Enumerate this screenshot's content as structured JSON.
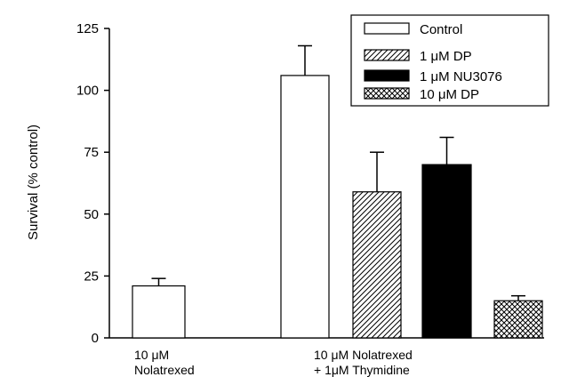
{
  "chart_data": {
    "type": "bar",
    "title": "",
    "xlabel": "",
    "ylabel": "Survival (% control)",
    "ylim": [
      0,
      125
    ],
    "yticks": [
      "0",
      "25",
      "50",
      "75",
      "100",
      "125"
    ],
    "legend_placement": "top-right",
    "groups": [
      {
        "label_line1": "10 μM",
        "label_line2": "Nolatrexed"
      },
      {
        "label_line1": "10 μM Nolatrexed",
        "label_line2": "+ 1μM Thymidine"
      }
    ],
    "series": [
      {
        "name": "Control",
        "pattern": "open",
        "values": [
          21,
          106
        ],
        "errors": [
          3,
          12
        ]
      },
      {
        "name": "1 μM DP",
        "pattern": "hatched",
        "values": [
          null,
          59
        ],
        "errors": [
          null,
          16
        ]
      },
      {
        "name": "1 μM NU3076",
        "pattern": "solid",
        "values": [
          null,
          70
        ],
        "errors": [
          null,
          11
        ]
      },
      {
        "name": "10 μM DP",
        "pattern": "crosshatch",
        "values": [
          null,
          15
        ],
        "errors": [
          null,
          2
        ]
      }
    ],
    "colors": {
      "ink": "#000000",
      "fill_open": "#ffffff",
      "fill_solid": "#000000"
    }
  }
}
